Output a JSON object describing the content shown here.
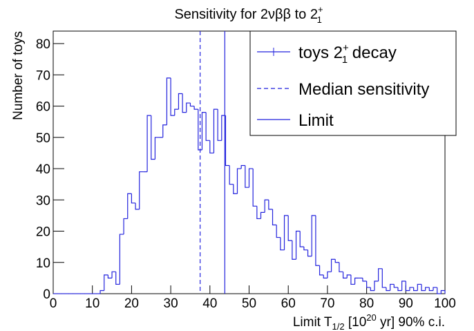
{
  "chart_data": {
    "type": "histogram",
    "title": {
      "text": "Sensitivity for 2νββ to 2",
      "sup": "+",
      "sub": "1"
    },
    "x_label": {
      "text": "Limit T",
      "sub": "1/2",
      "mid": " [10",
      "sup": "20",
      "after": " yr] 90% c.i."
    },
    "y_label": "Number of toys",
    "bins": [
      0,
      1,
      2,
      3,
      4,
      5,
      6,
      7,
      8,
      9,
      10,
      11,
      12,
      13,
      14,
      15,
      16,
      17,
      18,
      19,
      20,
      21,
      22,
      23,
      24,
      25,
      26,
      27,
      28,
      29,
      30,
      31,
      32,
      33,
      34,
      35,
      36,
      37,
      38,
      39,
      40,
      41,
      42,
      43,
      44,
      45,
      46,
      47,
      48,
      49,
      50,
      51,
      52,
      53,
      54,
      55,
      56,
      57,
      58,
      59,
      60,
      61,
      62,
      63,
      64,
      65,
      66,
      67,
      68,
      69,
      70,
      71,
      72,
      73,
      74,
      75,
      76,
      77,
      78,
      79,
      80,
      81,
      82,
      83,
      84,
      85,
      86,
      87,
      88,
      89,
      90,
      91,
      92,
      93,
      94,
      95,
      96,
      97,
      98,
      99,
      100
    ],
    "values": [
      0,
      0,
      0,
      0,
      0,
      0,
      0,
      0,
      0,
      0,
      0,
      0,
      1,
      6,
      5,
      7,
      3,
      19,
      24,
      32,
      29,
      27,
      39,
      39,
      57,
      43,
      50,
      50,
      54,
      69,
      57,
      59,
      64,
      58,
      61,
      60,
      59,
      46,
      58,
      49,
      45,
      59,
      49,
      57,
      41,
      35,
      32,
      40,
      41,
      34,
      40,
      28,
      24,
      26,
      30,
      27,
      22,
      18,
      14,
      25,
      17,
      11,
      20,
      15,
      14,
      12,
      25,
      9,
      6,
      5,
      7,
      11,
      10,
      7,
      5,
      6,
      3,
      5,
      5,
      4,
      2,
      1,
      4,
      8,
      2,
      1,
      3,
      2,
      1,
      4,
      1,
      2,
      1,
      3,
      1,
      2,
      1,
      2,
      0,
      1
    ],
    "color": "#2222dd",
    "median": 37.5,
    "limit": 43.8,
    "legend": [
      {
        "text": "toys 2",
        "sup": "+",
        "sub": "1",
        "after": " decay",
        "style": "solid"
      },
      {
        "text": "Median sensitivity",
        "style": "dashed"
      },
      {
        "text": "Limit",
        "style": "solid"
      }
    ],
    "xlim": [
      0,
      100
    ],
    "xticks": [
      0,
      10,
      20,
      30,
      40,
      50,
      60,
      70,
      80,
      90,
      100
    ],
    "ylim": [
      0,
      84
    ],
    "yticks": [
      0,
      10,
      20,
      30,
      40,
      50,
      60,
      70,
      80
    ]
  }
}
